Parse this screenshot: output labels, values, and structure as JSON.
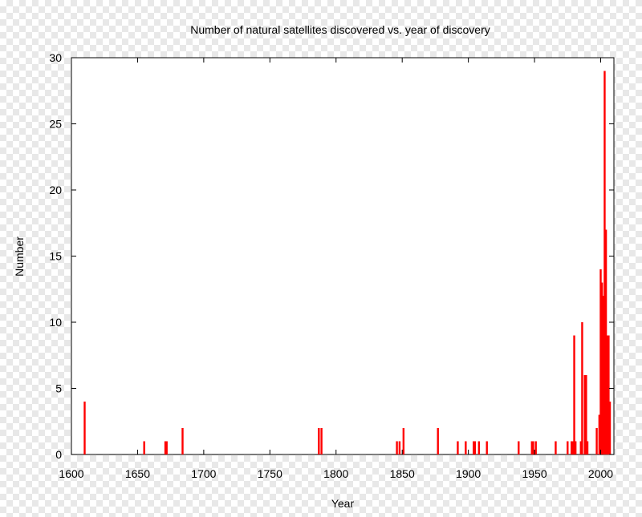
{
  "chart_data": {
    "type": "bar",
    "title": "Number of natural satellites discovered vs. year of discovery",
    "xlabel": "Year",
    "ylabel": "Number",
    "xlim": [
      1600,
      2010
    ],
    "ylim": [
      0,
      30
    ],
    "xticks": [
      "1600",
      "1650",
      "1700",
      "1750",
      "1800",
      "1850",
      "1900",
      "1950",
      "2000"
    ],
    "yticks": [
      "0",
      "5",
      "10",
      "15",
      "20",
      "25",
      "30"
    ],
    "grid": false,
    "legend": "none",
    "bar_color": "#ff0000",
    "x": [
      1610,
      1655,
      1671,
      1672,
      1684,
      1787,
      1789,
      1846,
      1848,
      1851,
      1877,
      1892,
      1898,
      1904,
      1905,
      1908,
      1914,
      1938,
      1948,
      1949,
      1951,
      1966,
      1975,
      1978,
      1979,
      1980,
      1981,
      1985,
      1986,
      1988,
      1989,
      1990,
      1997,
      1999,
      2000,
      2001,
      2002,
      2003,
      2004,
      2005,
      2006,
      2007
    ],
    "values": [
      4,
      1,
      1,
      1,
      2,
      2,
      2,
      1,
      1,
      2,
      2,
      1,
      1,
      1,
      1,
      1,
      1,
      1,
      1,
      1,
      1,
      1,
      1,
      1,
      1,
      9,
      1,
      1,
      10,
      6,
      6,
      1,
      2,
      3,
      14,
      13,
      12,
      29,
      17,
      9,
      9,
      4
    ]
  }
}
